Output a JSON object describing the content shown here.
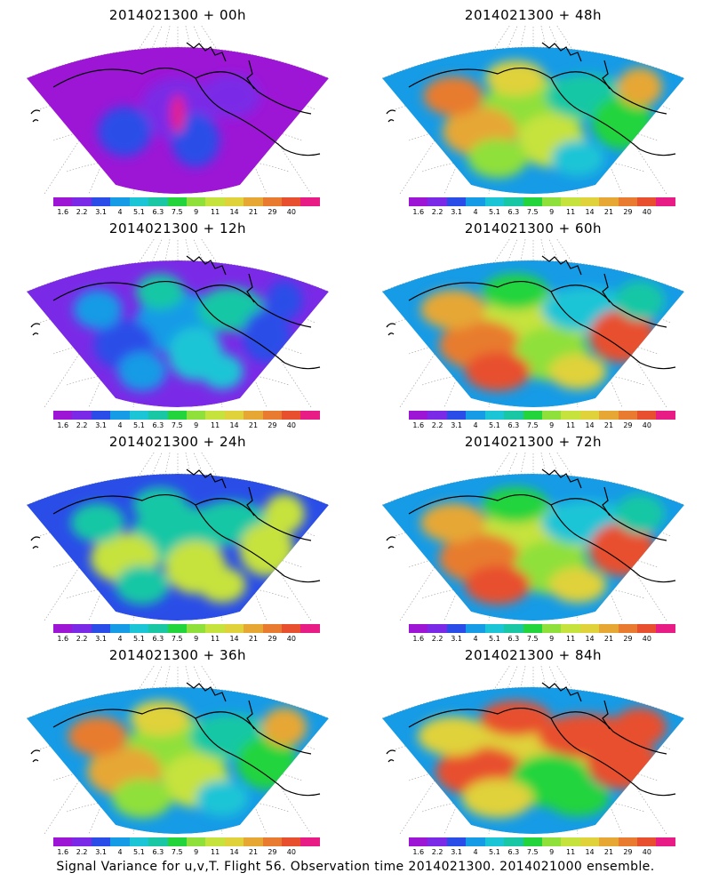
{
  "panels": [
    {
      "title": "2014021300 + 00h",
      "level": 0
    },
    {
      "title": "2014021300 + 48h",
      "level": 3
    },
    {
      "title": "2014021300 + 12h",
      "level": 1
    },
    {
      "title": "2014021300 + 60h",
      "level": 4
    },
    {
      "title": "2014021300 + 24h",
      "level": 2
    },
    {
      "title": "2014021300 + 72h",
      "level": 4
    },
    {
      "title": "2014021300 + 36h",
      "level": 3
    },
    {
      "title": "2014021300 + 84h",
      "level": 5
    }
  ],
  "colorbar": {
    "colors": [
      "#9d16d6",
      "#7a2ae6",
      "#2a4de8",
      "#169be6",
      "#1cc5d6",
      "#19c7a5",
      "#23d43d",
      "#8fe03a",
      "#c6e23c",
      "#e0d23a",
      "#e6a735",
      "#e87b2f",
      "#e84f2f",
      "#e81c85"
    ],
    "ticks": [
      "1.6",
      "2.2",
      "3.1",
      "4",
      "5.1",
      "6.3",
      "7.5",
      "9",
      "11",
      "14",
      "21",
      "29",
      "40"
    ]
  },
  "footer": "Signal Variance for u,v,T. Flight 56. Observation time 2014021300. 2014021000 ensemble."
}
